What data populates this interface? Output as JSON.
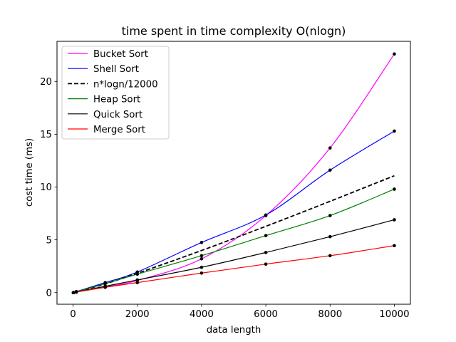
{
  "chart_data": {
    "type": "line",
    "title": "time spent in time complexity O(nlogn)",
    "xlabel": "data length",
    "ylabel": "cost time (ms)",
    "xlim": [
      -500,
      10500
    ],
    "ylim": [
      -1.1,
      23.8
    ],
    "xticks": [
      0,
      2000,
      4000,
      6000,
      8000,
      10000
    ],
    "yticks": [
      0,
      5,
      10,
      15,
      20
    ],
    "legend_position": "top-left",
    "grid": false,
    "x": [
      10,
      100,
      1000,
      2000,
      4000,
      6000,
      8000,
      10000
    ],
    "series": [
      {
        "name": "Bucket Sort",
        "color": "#ff00ff",
        "style": "solid",
        "markers": true,
        "values": [
          0.0,
          0.05,
          0.55,
          1.15,
          3.2,
          7.3,
          13.7,
          22.6
        ]
      },
      {
        "name": "Shell Sort",
        "color": "#0000ff",
        "style": "solid",
        "markers": true,
        "values": [
          0.0,
          0.1,
          0.95,
          1.95,
          4.75,
          7.35,
          11.6,
          15.3
        ]
      },
      {
        "name": "n*logn/12000",
        "color": "#000000",
        "style": "dashed",
        "markers": false,
        "values": [
          0.003,
          0.055,
          0.83,
          1.83,
          3.99,
          6.28,
          8.65,
          11.07
        ]
      },
      {
        "name": "Heap Sort",
        "color": "#008000",
        "style": "solid",
        "markers": true,
        "values": [
          0.0,
          0.08,
          0.85,
          1.75,
          3.5,
          5.4,
          7.3,
          9.8
        ]
      },
      {
        "name": "Quick Sort",
        "color": "#000000",
        "style": "solid",
        "markers": true,
        "values": [
          0.0,
          0.06,
          0.6,
          1.2,
          2.4,
          3.8,
          5.3,
          6.9
        ]
      },
      {
        "name": "Merge Sort",
        "color": "#ff0000",
        "style": "solid",
        "markers": true,
        "values": [
          0.0,
          0.05,
          0.5,
          0.95,
          1.85,
          2.7,
          3.5,
          4.45
        ]
      }
    ]
  }
}
